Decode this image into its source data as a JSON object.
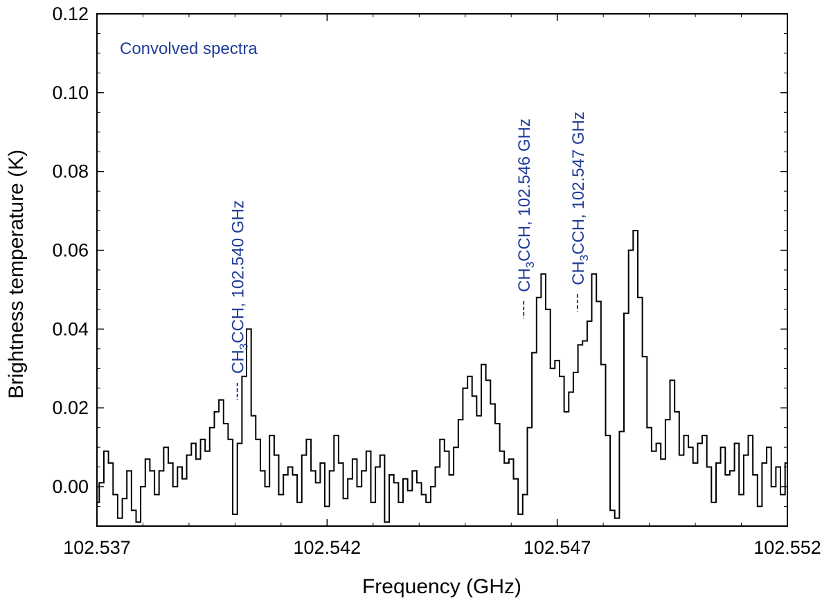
{
  "chart_data": {
    "type": "line",
    "step": true,
    "title": "",
    "xlabel": "Frequency (GHz)",
    "ylabel": "Brightness temperature (K)",
    "xlim": [
      102.537,
      102.552
    ],
    "ylim": [
      -0.01,
      0.12
    ],
    "xticks": [
      102.537,
      102.542,
      102.547,
      102.552
    ],
    "xtick_labels": [
      "102.537",
      "102.542",
      "102.547",
      "102.552"
    ],
    "yticks": [
      0.0,
      0.02,
      0.04,
      0.06,
      0.08,
      0.1,
      0.12
    ],
    "ytick_labels": [
      "0.00",
      "0.02",
      "0.04",
      "0.06",
      "0.08",
      "0.10",
      "0.12"
    ],
    "grid": false,
    "series_color": "#000000",
    "annotation_color": "#1f3c99",
    "panel_label": "Convolved spectra",
    "series": [
      {
        "x": [
          102.537,
          102.5371,
          102.5372,
          102.5373,
          102.5374,
          102.5375,
          102.5376,
          102.5377,
          102.5378,
          102.5379,
          102.538,
          102.5381,
          102.5382,
          102.5383,
          102.5384,
          102.5385,
          102.5386,
          102.5387,
          102.5388,
          102.5389,
          102.539,
          102.5391,
          102.5392,
          102.5393,
          102.5394,
          102.5395,
          102.5396,
          102.5397,
          102.5398,
          102.5399,
          102.54,
          102.5401,
          102.5402,
          102.5403,
          102.5404,
          102.5405,
          102.5406,
          102.5407,
          102.5408,
          102.5409,
          102.541,
          102.5411,
          102.5412,
          102.5413,
          102.5414,
          102.5415,
          102.5416,
          102.5417,
          102.5418,
          102.5419,
          102.542,
          102.5421,
          102.5422,
          102.5423,
          102.5424,
          102.5425,
          102.5426,
          102.5427,
          102.5428,
          102.5429,
          102.543,
          102.5431,
          102.5432,
          102.5433,
          102.5434,
          102.5435,
          102.5436,
          102.5437,
          102.5438,
          102.5439,
          102.544,
          102.5441,
          102.5442,
          102.5443,
          102.5444,
          102.5445,
          102.5446,
          102.5447,
          102.5448,
          102.5449,
          102.545,
          102.5451,
          102.5452,
          102.5453,
          102.5454,
          102.5455,
          102.5456,
          102.5457,
          102.5458,
          102.5459,
          102.546,
          102.5461,
          102.5462,
          102.5463,
          102.5464,
          102.5465,
          102.5466,
          102.5467,
          102.5468,
          102.5469,
          102.547,
          102.5471,
          102.5472,
          102.5473,
          102.5474,
          102.5475,
          102.5476,
          102.5477,
          102.5478,
          102.5479,
          102.548,
          102.5481,
          102.5482,
          102.5483,
          102.5484,
          102.5485,
          102.5486,
          102.5487,
          102.5488,
          102.5489,
          102.549,
          102.5491,
          102.5492,
          102.5493,
          102.5494,
          102.5495,
          102.5496,
          102.5497,
          102.5498,
          102.5499,
          102.55,
          102.5501,
          102.5502,
          102.5503,
          102.5504,
          102.5505,
          102.5506,
          102.5507,
          102.5508,
          102.5509,
          102.551,
          102.5511,
          102.5512,
          102.5513,
          102.5514,
          102.5515,
          102.5516,
          102.5517,
          102.5518,
          102.5519,
          102.552
        ],
        "values": [
          -0.004,
          0.001,
          0.009,
          0.006,
          -0.002,
          -0.008,
          -0.003,
          0.004,
          -0.006,
          -0.009,
          0.0,
          0.007,
          0.004,
          -0.002,
          0.004,
          0.01,
          0.006,
          0.0,
          0.005,
          0.002,
          0.008,
          0.011,
          0.007,
          0.012,
          0.009,
          0.015,
          0.019,
          0.022,
          0.016,
          0.012,
          -0.007,
          0.011,
          0.028,
          0.04,
          0.018,
          0.012,
          0.004,
          0.0,
          0.013,
          0.008,
          -0.002,
          0.003,
          0.005,
          0.003,
          -0.004,
          0.008,
          0.012,
          0.004,
          0.001,
          0.006,
          -0.005,
          0.004,
          0.013,
          0.006,
          -0.003,
          0.002,
          0.007,
          0.0,
          0.004,
          0.009,
          -0.004,
          0.005,
          0.008,
          -0.009,
          0.003,
          0.001,
          -0.004,
          0.002,
          -0.001,
          0.004,
          0.001,
          -0.002,
          -0.004,
          0.0,
          0.005,
          0.012,
          0.009,
          0.003,
          0.01,
          0.017,
          0.025,
          0.028,
          0.023,
          0.018,
          0.031,
          0.027,
          0.021,
          0.016,
          0.009,
          0.006,
          0.007,
          0.002,
          -0.007,
          -0.002,
          0.015,
          0.034,
          0.048,
          0.054,
          0.045,
          0.03,
          0.032,
          0.028,
          0.019,
          0.024,
          0.029,
          0.036,
          0.037,
          0.042,
          0.054,
          0.047,
          0.031,
          0.013,
          -0.006,
          -0.008,
          0.014,
          0.044,
          0.06,
          0.065,
          0.048,
          0.033,
          0.015,
          0.009,
          0.011,
          0.007,
          0.017,
          0.027,
          0.019,
          0.008,
          0.013,
          0.01,
          0.006,
          0.011,
          0.013,
          0.005,
          -0.004,
          0.006,
          0.01,
          0.003,
          0.004,
          0.011,
          -0.002,
          0.008,
          0.013,
          0.003,
          -0.005,
          0.006,
          0.01,
          0.0,
          0.005,
          -0.002,
          0.006
        ]
      }
    ],
    "annotations": [
      {
        "text": "CH",
        "sub": "3",
        "rest": "CCH, 102.540 GHz",
        "x": 102.54005
      },
      {
        "text": "CH",
        "sub": "3",
        "rest": "CCH, 102.546 GHz",
        "x": 102.54627
      },
      {
        "text": "CH",
        "sub": "3",
        "rest": "CCH, 102.547 GHz",
        "x": 102.54744
      }
    ]
  }
}
